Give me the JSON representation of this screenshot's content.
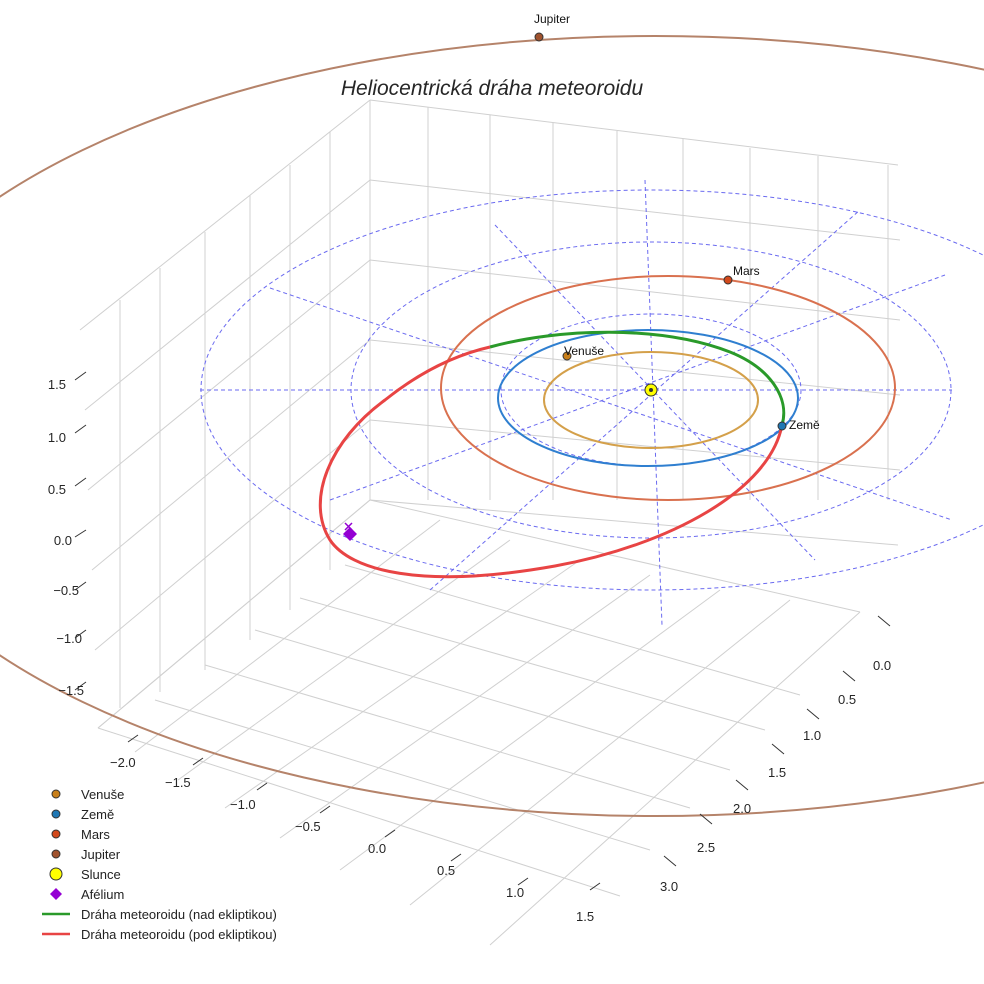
{
  "chart_data": {
    "type": "3d-line",
    "title": "Heliocentrická dráha meteoroidu",
    "x_ticks": [
      "−2.0",
      "−1.5",
      "−1.0",
      "−0.5",
      "0.0",
      "0.5",
      "1.0",
      "1.5"
    ],
    "y_ticks": [
      "0.0",
      "0.5",
      "1.0",
      "1.5",
      "2.0",
      "2.5",
      "3.0"
    ],
    "z_ticks": [
      "1.5",
      "1.0",
      "0.5",
      "0.0",
      "−0.5",
      "−1.0",
      "−1.5"
    ],
    "planets": [
      {
        "name": "Venuše",
        "label": "Venuše",
        "color": "#c87f1a"
      },
      {
        "name": "Země",
        "label": "Země",
        "color": "#1f77b4"
      },
      {
        "name": "Mars",
        "label": "Mars",
        "color": "#d2491c"
      },
      {
        "name": "Jupiter",
        "label": "Jupiter",
        "color": "#a0522d"
      }
    ],
    "orbits": [
      {
        "name": "Venuše",
        "color": "#d4a04a"
      },
      {
        "name": "Země",
        "color": "#2f7fd0"
      },
      {
        "name": "Mars",
        "color": "#d9714f"
      },
      {
        "name": "Jupiter",
        "color": "#b5836a"
      }
    ],
    "sun": {
      "name": "Slunce",
      "color": "#ffff00"
    },
    "aphelion": {
      "name": "Afélium",
      "color": "#9400d3"
    },
    "meteoroid_above": {
      "name": "Dráha meteoroidu (nad ekliptikou)",
      "color": "#2a9a2a"
    },
    "meteoroid_below": {
      "name": "Dráha meteoroidu (pod ekliptikou)",
      "color": "#e84444"
    },
    "legend": [
      {
        "label": "Venuše",
        "kind": "dot",
        "color": "#c87f1a"
      },
      {
        "label": "Země",
        "kind": "dot",
        "color": "#1f77b4"
      },
      {
        "label": "Mars",
        "kind": "dot",
        "color": "#d2491c"
      },
      {
        "label": "Jupiter",
        "kind": "dot",
        "color": "#a0522d"
      },
      {
        "label": "Slunce",
        "kind": "sun",
        "color": "#ffff00"
      },
      {
        "label": "Afélium",
        "kind": "diamond",
        "color": "#9400d3"
      },
      {
        "label": "Dráha meteoroidu (nad ekliptikou)",
        "kind": "line",
        "color": "#2a9a2a"
      },
      {
        "label": "Dráha meteoroidu (pod ekliptikou)",
        "kind": "line",
        "color": "#e84444"
      }
    ]
  }
}
